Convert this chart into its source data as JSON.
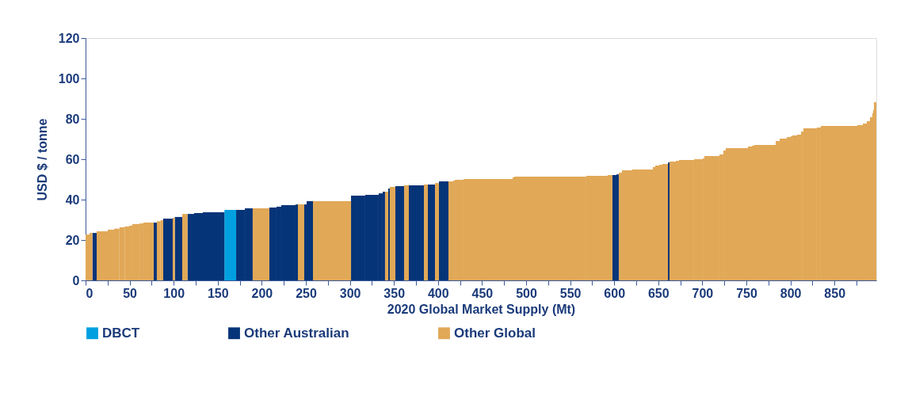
{
  "chart_data": {
    "type": "histogram",
    "xlabel": "2020 Global Market Supply (Mt)",
    "ylabel": "USD $ / tonne",
    "bins": [
      0,
      4.5,
      7.8,
      12.6,
      25.2,
      32.4,
      38.4,
      44.3,
      49.5,
      53.1,
      61.2,
      65.6,
      77.3,
      80.9,
      85.2,
      88.1,
      98.9,
      101.3,
      109.7,
      115.7,
      123.2,
      133.1,
      157.6,
      170.9,
      180.8,
      189.7,
      208.6,
      216.7,
      222.1,
      238.3,
      241.0,
      248.2,
      250.9,
      258.1,
      301.3,
      317.4,
      332.7,
      337.2,
      339.9,
      343.5,
      345.3,
      351.6,
      361.5,
      366.9,
      384.0,
      388.5,
      396.6,
      401.1,
      411.9,
      417.3,
      419.1,
      429.0,
      484.7,
      486.5,
      568.3,
      592.6,
      598.0,
      602.5,
      605.2,
      608.8,
      620.5,
      643.9,
      646.6,
      651.1,
      654.7,
      661.0,
      662.8,
      670.0,
      673.6,
      690.6,
      700.5,
      702.3,
      719.4,
      723.9,
      726.6,
      751.8,
      756.3,
      759.0,
      783.3,
      787.8,
      795.9,
      800.4,
      802.2,
      807.6,
      812.1,
      814.7,
      830.0,
      834.5,
      875.9,
      882.2,
      886.7,
      890.3,
      893.0,
      893.9,
      894.8,
      897.5
    ],
    "series": [
      {
        "name": "DBCT",
        "color": "#00a0e0",
        "values": [
          null,
          null,
          null,
          null,
          null,
          null,
          null,
          null,
          null,
          null,
          null,
          null,
          null,
          null,
          null,
          null,
          null,
          null,
          null,
          null,
          null,
          null,
          34.9,
          null,
          null,
          null,
          null,
          null,
          null,
          null,
          null,
          null,
          null,
          null,
          null,
          null,
          null,
          null,
          null,
          null,
          null,
          null,
          null,
          null,
          null,
          null,
          null,
          null,
          null,
          null,
          null,
          null,
          null,
          null,
          null,
          null,
          null,
          null,
          null,
          null,
          null,
          null,
          null,
          null,
          null,
          null,
          null,
          null,
          null,
          null,
          null,
          null,
          null,
          null,
          null,
          null,
          null,
          null,
          null,
          null,
          null,
          null,
          null,
          null,
          null,
          null,
          null,
          null,
          null,
          null,
          null,
          null,
          null,
          null,
          null
        ]
      },
      {
        "name": "Other Australian",
        "color": "#063478",
        "values": [
          null,
          null,
          23.5,
          null,
          null,
          null,
          null,
          null,
          null,
          null,
          null,
          null,
          28.6,
          null,
          null,
          30.6,
          null,
          31.4,
          null,
          32.9,
          33.3,
          33.7,
          null,
          34.9,
          35.7,
          null,
          36.1,
          36.5,
          37.3,
          37.6,
          null,
          37.6,
          39.2,
          null,
          42.0,
          42.4,
          43.1,
          43.9,
          null,
          45.5,
          null,
          46.7,
          null,
          47.1,
          null,
          47.5,
          null,
          49.0,
          null,
          null,
          null,
          null,
          null,
          null,
          null,
          null,
          52.2,
          52.5,
          null,
          null,
          null,
          null,
          null,
          null,
          null,
          58.4,
          null,
          null,
          null,
          null,
          null,
          null,
          null,
          null,
          null,
          null,
          null,
          null,
          null,
          null,
          null,
          null,
          null,
          null,
          null,
          null,
          null,
          null,
          null,
          null,
          null,
          null,
          null,
          null,
          null
        ]
      },
      {
        "name": "Other Global",
        "color": "#e1a857",
        "values": [
          22.7,
          23.5,
          null,
          24.3,
          25.1,
          25.6,
          26.3,
          26.7,
          27.1,
          27.9,
          28.2,
          28.6,
          null,
          29.3,
          29.8,
          null,
          31.0,
          null,
          32.9,
          null,
          null,
          null,
          null,
          null,
          null,
          35.7,
          null,
          null,
          null,
          null,
          37.6,
          null,
          null,
          39.2,
          null,
          null,
          null,
          null,
          43.9,
          null,
          46.3,
          null,
          47.1,
          null,
          47.5,
          null,
          48.2,
          null,
          49.0,
          49.4,
          49.8,
          50.2,
          51.0,
          51.4,
          51.8,
          52.2,
          null,
          null,
          53.3,
          54.5,
          54.9,
          56.1,
          56.9,
          57.3,
          57.6,
          null,
          58.8,
          59.2,
          59.6,
          60.0,
          60.4,
          61.6,
          62.4,
          64.3,
          65.5,
          66.3,
          66.7,
          67.1,
          69.0,
          70.2,
          71.0,
          71.4,
          71.8,
          72.2,
          73.7,
          75.3,
          75.7,
          76.5,
          76.9,
          77.6,
          78.8,
          80.8,
          82.7,
          84.3,
          88.2
        ]
      }
    ],
    "xlim": [
      0,
      897.5
    ],
    "xticks": [
      0,
      {
        "value": 25,
        "label": null
      },
      50,
      {
        "value": 75,
        "label": null
      },
      100,
      {
        "value": 125,
        "label": null
      },
      150,
      {
        "value": 175,
        "label": null
      },
      200,
      {
        "value": 225,
        "label": null
      },
      250,
      {
        "value": 275,
        "label": null
      },
      300,
      {
        "value": 325,
        "label": null
      },
      350,
      {
        "value": 375,
        "label": null
      },
      400,
      {
        "value": 425,
        "label": null
      },
      450,
      {
        "value": 475,
        "label": null
      },
      500,
      {
        "value": 525,
        "label": null
      },
      550,
      {
        "value": 575,
        "label": null
      },
      600,
      {
        "value": 625,
        "label": null
      },
      650,
      {
        "value": 675,
        "label": null
      },
      700,
      {
        "value": 725,
        "label": null
      },
      750,
      {
        "value": 775,
        "label": null
      },
      800,
      {
        "value": 825,
        "label": null
      },
      850,
      {
        "value": 875,
        "label": null
      }
    ],
    "ylim": [
      0,
      120
    ],
    "yticks": [
      0,
      20,
      40,
      60,
      80,
      100,
      120
    ],
    "grid": false,
    "legend": "bottom"
  }
}
